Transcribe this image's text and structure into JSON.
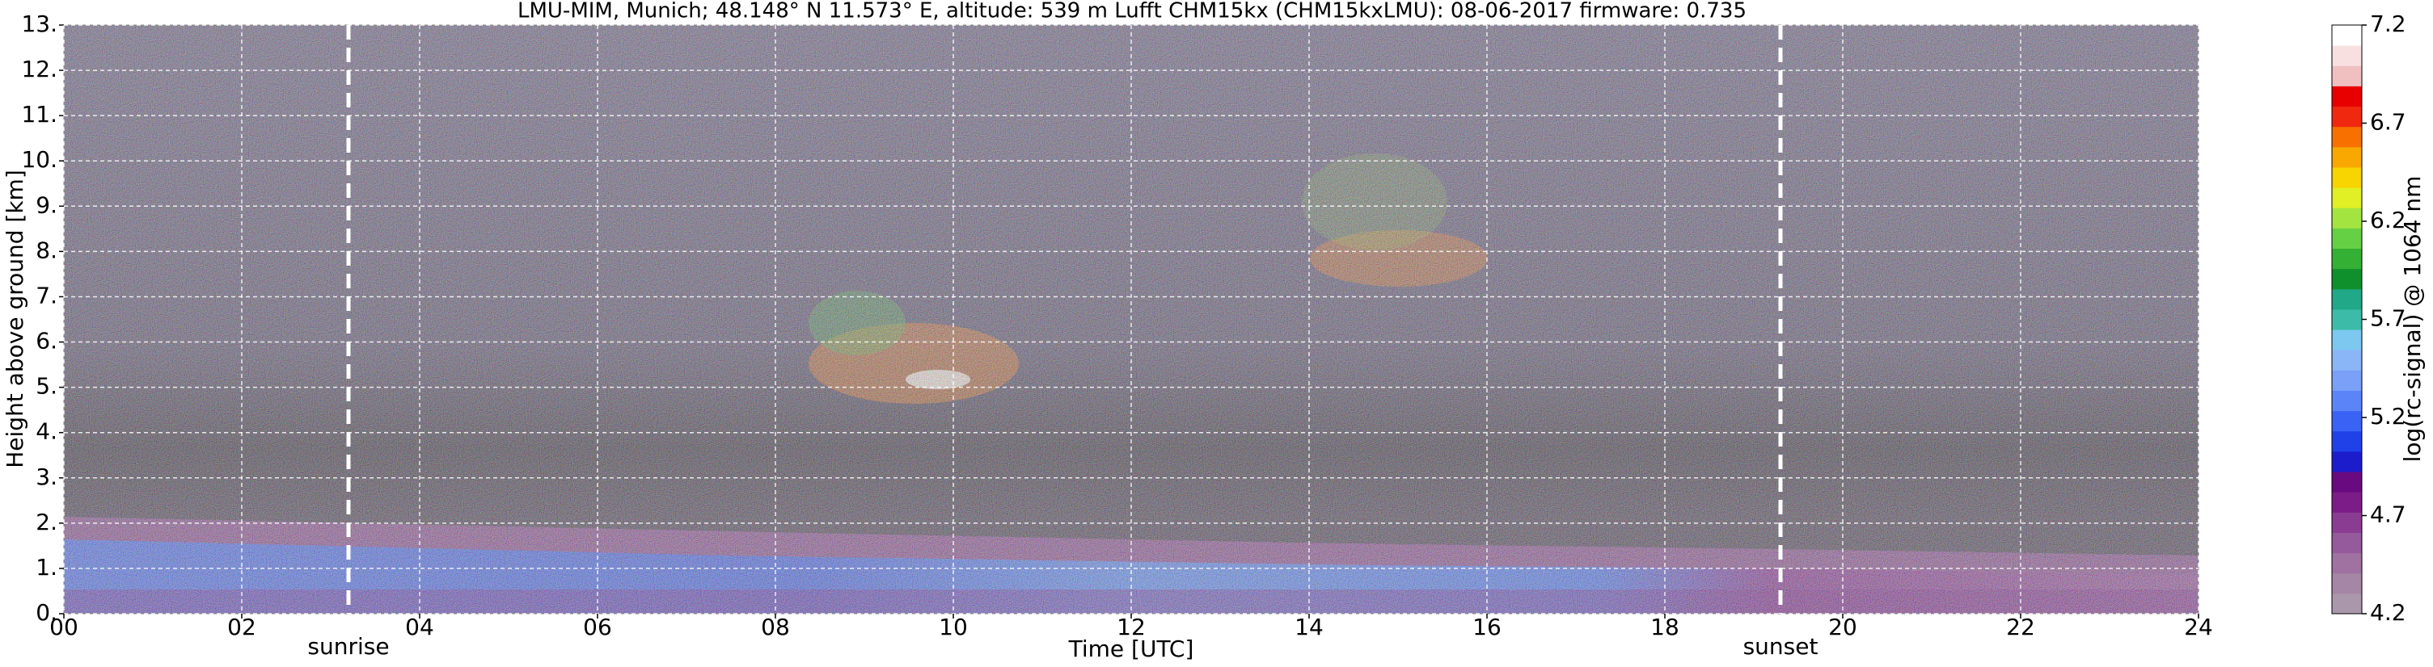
{
  "chart_data": {
    "type": "ceilometer",
    "title": "LMU-MIM, Munich; 48.148° N 11.573° E, altitude: 539 m    Lufft CHM15kx (CHM15kxLMU): 08-06-2017    firmware: 0.735",
    "xlabel": "Time [UTC]",
    "ylabel": "Height above ground [km]",
    "xlim": [
      0,
      24
    ],
    "xticks": [
      {
        "value": 0,
        "label": "00"
      },
      {
        "value": 2,
        "label": "02"
      },
      {
        "value": 4,
        "label": "04"
      },
      {
        "value": 6,
        "label": "06"
      },
      {
        "value": 8,
        "label": "08"
      },
      10,
      12,
      14,
      16,
      18,
      20,
      22,
      24
    ],
    "ylim": [
      0,
      13
    ],
    "yticks": [
      {
        "value": 0,
        "label": "0."
      },
      {
        "value": 1,
        "label": "1."
      },
      {
        "value": 2,
        "label": "2."
      },
      {
        "value": 3,
        "label": "3."
      },
      {
        "value": 4,
        "label": "4."
      },
      {
        "value": 5,
        "label": "5."
      },
      {
        "value": 6,
        "label": "6."
      },
      {
        "value": 7,
        "label": "7."
      },
      {
        "value": 8,
        "label": "8."
      },
      {
        "value": 9,
        "label": "9."
      },
      {
        "value": 10,
        "label": "10."
      },
      {
        "value": 11,
        "label": "11."
      },
      {
        "value": 12,
        "label": "12."
      },
      {
        "value": 13,
        "label": "13."
      }
    ],
    "grid": true,
    "annotations": [
      {
        "label": "sunrise",
        "x": 3.2
      },
      {
        "label": "sunset",
        "x": 19.3
      }
    ],
    "colorbar": {
      "label": "log(rc-signal) @ 1064 nm",
      "clim": [
        4.2,
        7.2
      ],
      "ticks": [
        4.2,
        4.7,
        5.2,
        5.7,
        6.2,
        6.7,
        7.2
      ],
      "colors": [
        "#ab97ab",
        "#a586a5",
        "#9f72a2",
        "#955a9c",
        "#8a3c92",
        "#7b1c88",
        "#6a0a80",
        "#1c1ccc",
        "#2040e8",
        "#3a62f4",
        "#5a84f8",
        "#7aa0f8",
        "#8ab6f8",
        "#7cc8f0",
        "#3cbca8",
        "#20a888",
        "#10902c",
        "#34b034",
        "#66d044",
        "#a4e440",
        "#e0f024",
        "#f8d400",
        "#f8a800",
        "#f87000",
        "#f02810",
        "#e80000",
        "#f0c0c0",
        "#f8e0e0",
        "#ffffff"
      ]
    }
  }
}
